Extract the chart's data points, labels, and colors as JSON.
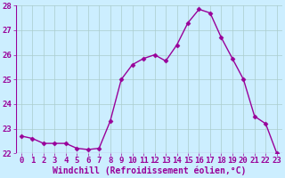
{
  "x": [
    0,
    1,
    2,
    3,
    4,
    5,
    6,
    7,
    8,
    9,
    10,
    11,
    12,
    13,
    14,
    15,
    16,
    17,
    18,
    19,
    20,
    21,
    22,
    23
  ],
  "y": [
    22.7,
    22.6,
    22.4,
    22.4,
    22.4,
    22.2,
    22.15,
    22.2,
    23.3,
    25.0,
    25.6,
    25.85,
    26.0,
    25.75,
    26.4,
    27.3,
    27.85,
    27.7,
    26.7,
    25.85,
    25.0,
    23.5,
    23.2,
    22.0
  ],
  "line_color": "#990099",
  "marker": "D",
  "markersize": 2.5,
  "linewidth": 1.0,
  "bg_color": "#cceeff",
  "grid_color": "#aacccc",
  "xlabel": "Windchill (Refroidissement éolien,°C)",
  "xlabel_fontsize": 7,
  "tick_fontsize": 6.5,
  "ylim": [
    22,
    28
  ],
  "xlim": [
    -0.5,
    23.5
  ],
  "yticks": [
    22,
    23,
    24,
    25,
    26,
    27,
    28
  ],
  "xticks": [
    0,
    1,
    2,
    3,
    4,
    5,
    6,
    7,
    8,
    9,
    10,
    11,
    12,
    13,
    14,
    15,
    16,
    17,
    18,
    19,
    20,
    21,
    22,
    23
  ],
  "tick_color": "#990099",
  "label_color": "#990099"
}
